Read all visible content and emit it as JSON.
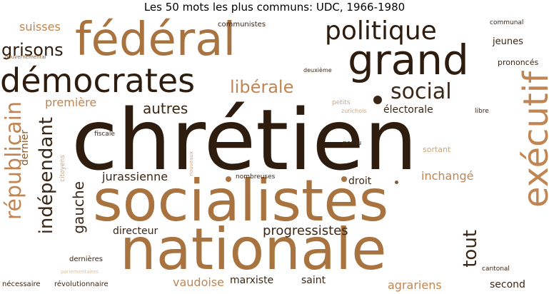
{
  "title": "Les 50 mots les plus communs: UDC, 1966-1980",
  "colors": {
    "darkest": "#2e1d0f",
    "dark": "#3b2716",
    "brown": "#8a5a2c",
    "medium": "#a8733f",
    "tan": "#c08552",
    "light": "#cfa57a",
    "pale": "#dfc3a4"
  },
  "words": [
    {
      "text": "chrétien",
      "color": "darkest"
    },
    {
      "text": "socialistes",
      "color": "medium"
    },
    {
      "text": "nationale",
      "color": "medium"
    },
    {
      "text": "fédéral",
      "color": "medium"
    },
    {
      "text": "grand",
      "color": "darkest"
    },
    {
      "text": "démocrates",
      "color": "darkest"
    },
    {
      "text": "politique",
      "color": "darkest"
    },
    {
      "text": "exécutif",
      "color": "tan"
    },
    {
      "text": "républicain",
      "color": "tan"
    },
    {
      "text": "indépendant",
      "color": "dark"
    },
    {
      "text": "social",
      "color": "dark"
    },
    {
      "text": "libérale",
      "color": "tan"
    },
    {
      "text": "tout",
      "color": "dark"
    },
    {
      "text": "gauche",
      "color": "dark"
    },
    {
      "text": "grisons",
      "color": "darkest"
    },
    {
      "text": "autres",
      "color": "dark"
    },
    {
      "text": "progressistes",
      "color": "dark"
    },
    {
      "text": "suisses",
      "color": "tan"
    },
    {
      "text": "jurassienne",
      "color": "dark"
    },
    {
      "text": "inchangé",
      "color": "tan"
    },
    {
      "text": "vaudoise",
      "color": "tan"
    },
    {
      "text": "première",
      "color": "tan"
    },
    {
      "text": "agrariens",
      "color": "tan"
    },
    {
      "text": "dernier",
      "color": "brown"
    },
    {
      "text": "droit",
      "color": "dark"
    },
    {
      "text": "électorale",
      "color": "dark"
    },
    {
      "text": "directeur",
      "color": "dark"
    },
    {
      "text": "marxiste",
      "color": "dark"
    },
    {
      "text": "saint",
      "color": "dark"
    },
    {
      "text": "second",
      "color": "dark"
    },
    {
      "text": "jeunes",
      "color": "dark"
    },
    {
      "text": "prononcés",
      "color": "dark"
    },
    {
      "text": "sortant",
      "color": "light"
    },
    {
      "text": "communistes",
      "color": "dark"
    },
    {
      "text": "dernières",
      "color": "dark"
    },
    {
      "text": "révolutionnaire",
      "color": "dark"
    },
    {
      "text": "nécessaire",
      "color": "dark"
    },
    {
      "text": "cantonal",
      "color": "dark"
    },
    {
      "text": "communal",
      "color": "dark"
    },
    {
      "text": "petits",
      "color": "light"
    },
    {
      "text": "nombreuses",
      "color": "dark"
    },
    {
      "text": "fiscale",
      "color": "dark"
    },
    {
      "text": "perdu",
      "color": "dark"
    },
    {
      "text": "libre",
      "color": "dark"
    },
    {
      "text": "citoyens",
      "color": "light"
    },
    {
      "text": "zurichois",
      "color": "light"
    },
    {
      "text": "deuxième",
      "color": "dark"
    },
    {
      "text": "gouvernemental",
      "color": "brown"
    },
    {
      "text": "parlementaires",
      "color": "pale"
    },
    {
      "text": "nouveaux",
      "color": "light"
    }
  ]
}
